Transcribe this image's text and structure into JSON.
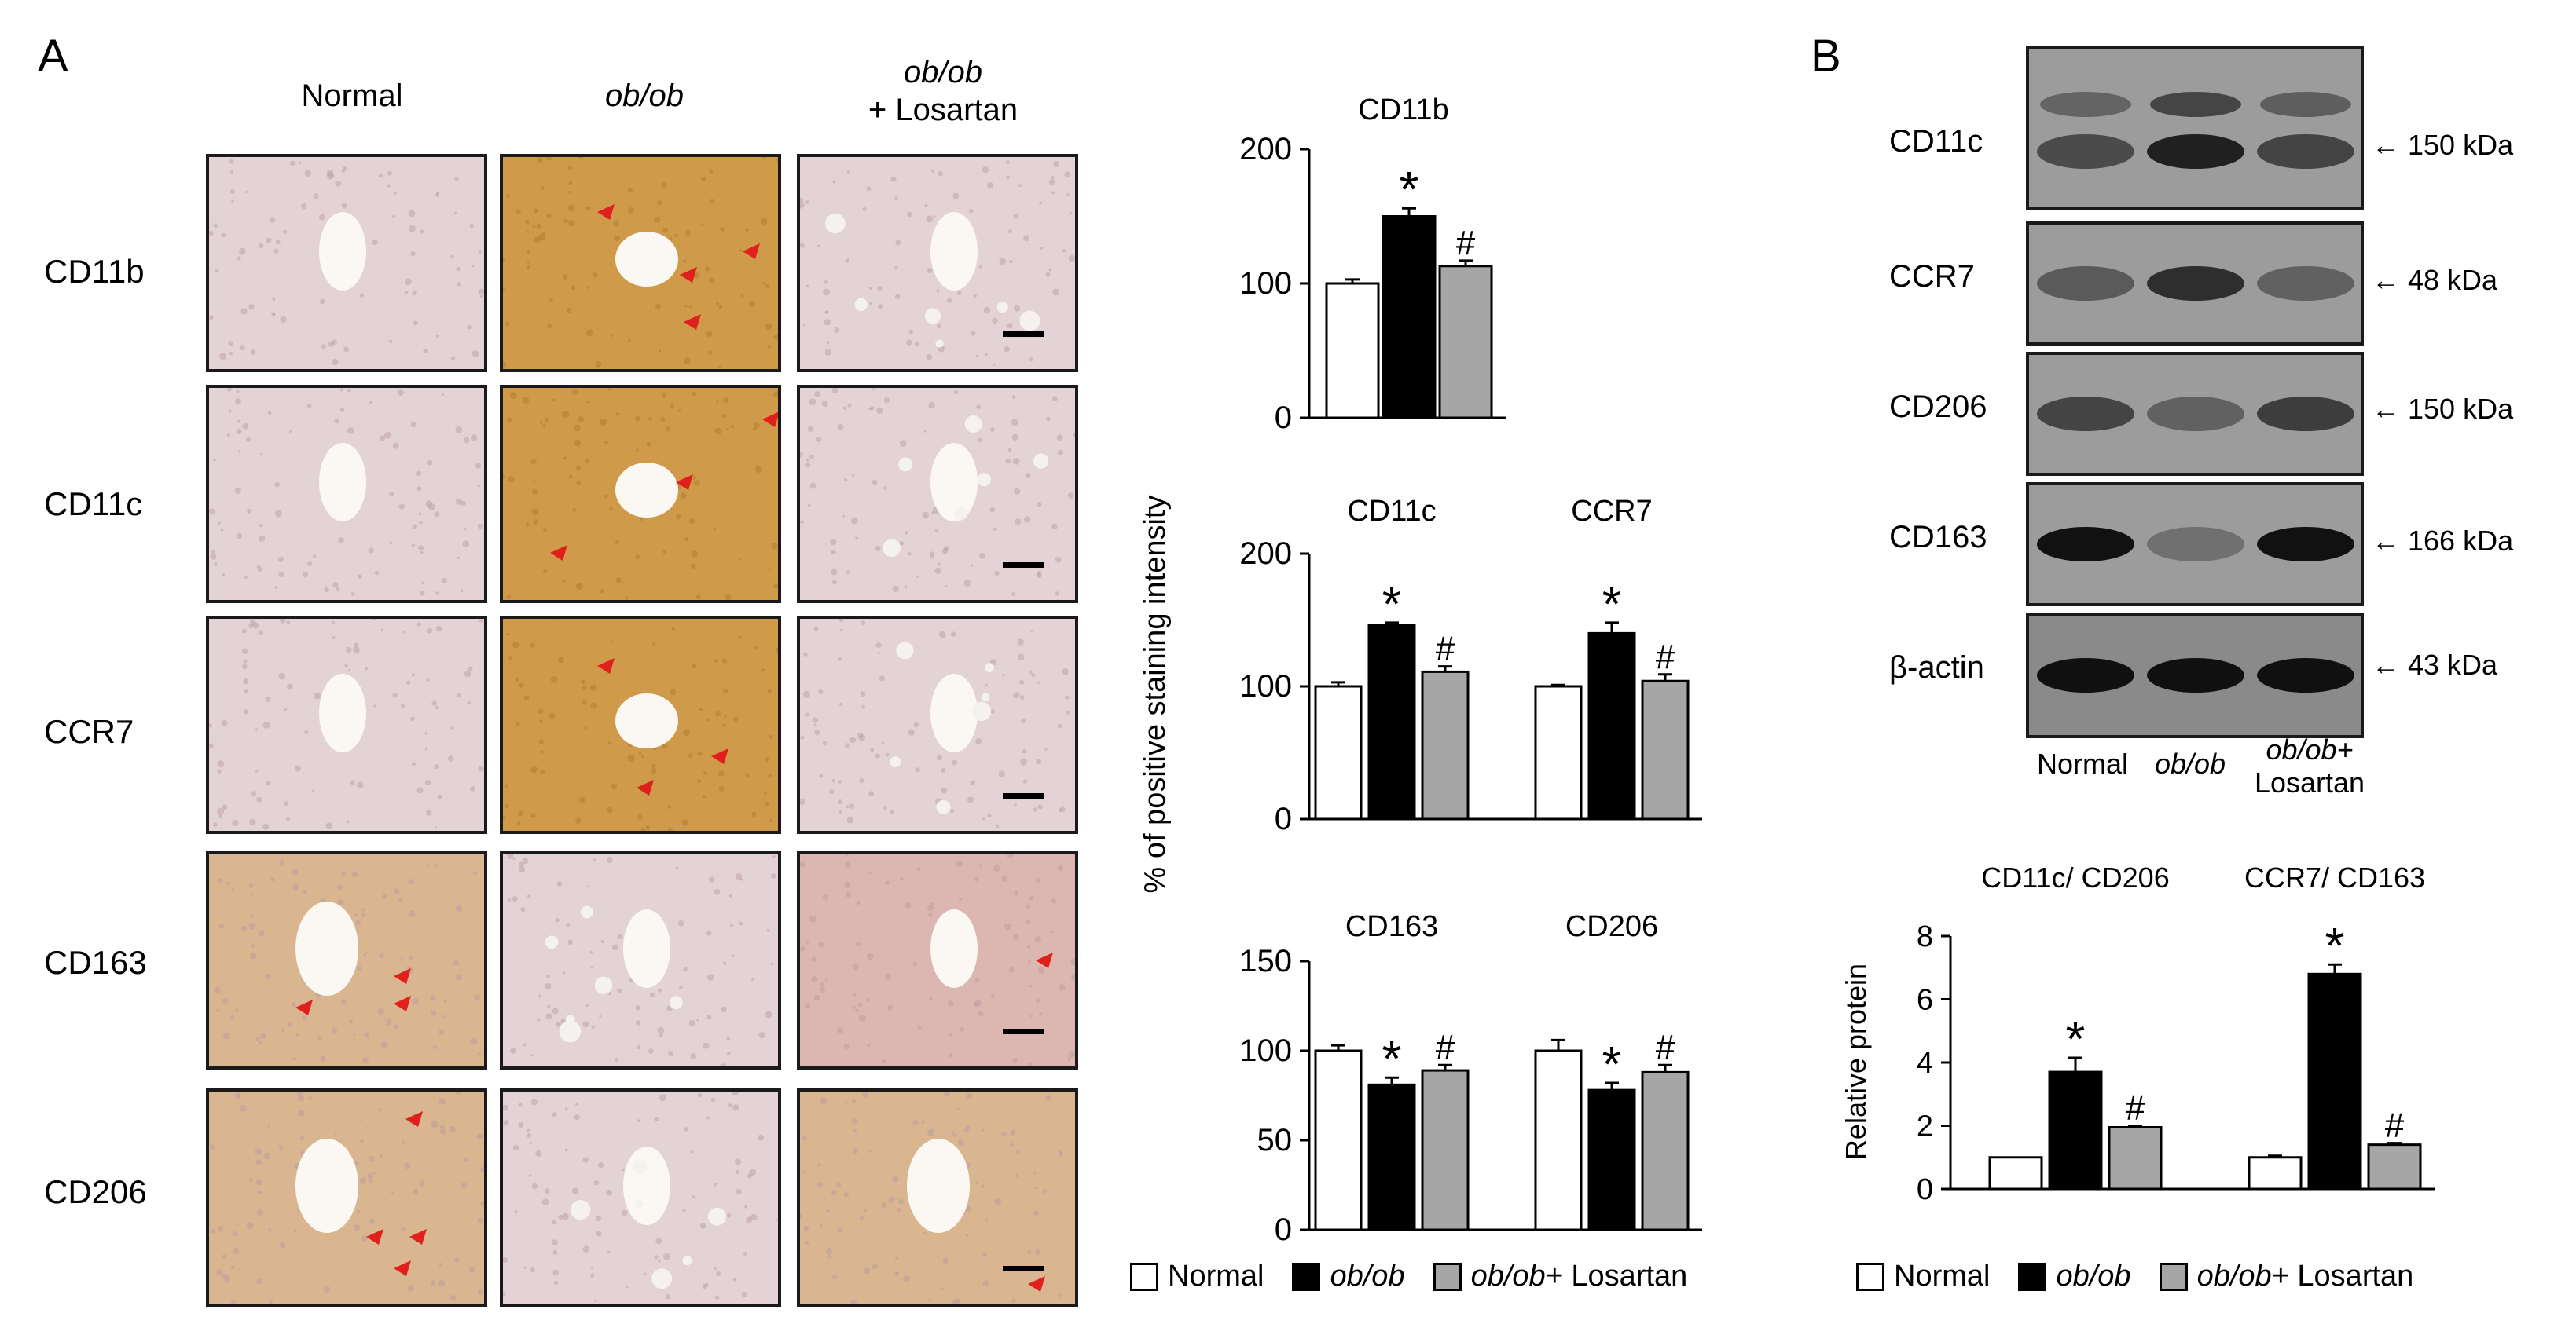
{
  "panel_a": {
    "letter": "A",
    "columns": [
      {
        "text": "Normal",
        "italic_part": "",
        "line2": ""
      },
      {
        "text": "",
        "italic_part": "ob/ob",
        "line2": ""
      },
      {
        "text": "",
        "italic_part": "ob/ob",
        "line2": "+ Losartan"
      }
    ],
    "rows": [
      "CD11b",
      "CD11c",
      "CCR7",
      "CD163",
      "CD206"
    ],
    "tissue_colors": {
      "pale_pink": "#e3d3d6",
      "brown": "#cf9a4a",
      "light_brown": "#d9b590",
      "arrow_red": "#e0201c"
    }
  },
  "panel_b": {
    "letter": "B",
    "blot_labels": [
      "CD11c",
      "CCR7",
      "CD206",
      "CD163",
      "β-actin"
    ],
    "kda": [
      "150 kDa",
      "48 kDa",
      "150 kDa",
      "166 kDa",
      "43 kDa"
    ],
    "lanes": {
      "normal": "Normal",
      "obob": "ob/ob",
      "obob_plus": "ob/ob+",
      "losartan": "Losartan"
    }
  },
  "legend": {
    "normal": "Normal",
    "obob": "ob/ob",
    "obob_plus": "ob/ob+",
    "losartan_suffix": " Losartan"
  },
  "colors": {
    "normal": "#ffffff",
    "obob": "#000000",
    "losartan": "#a6a6a6"
  },
  "chart_data": [
    {
      "type": "bar",
      "title": "CD11b",
      "categories": [
        "CD11b"
      ],
      "series": [
        {
          "name": "Normal",
          "values": [
            100
          ],
          "errors": [
            3
          ]
        },
        {
          "name": "ob/ob",
          "values": [
            150
          ],
          "errors": [
            6
          ]
        },
        {
          "name": "ob/ob+ Losartan",
          "values": [
            113
          ],
          "errors": [
            4
          ]
        }
      ],
      "marks": [
        [
          "",
          "*",
          "#"
        ]
      ],
      "ylabel": "% of positive staining intensity",
      "ylim": [
        0,
        200
      ],
      "yticks": [
        "0",
        "100",
        "200"
      ]
    },
    {
      "type": "bar",
      "categories": [
        "CD11c",
        "CCR7"
      ],
      "series": [
        {
          "name": "Normal",
          "values": [
            100,
            100
          ],
          "errors": [
            3,
            1
          ]
        },
        {
          "name": "ob/ob",
          "values": [
            146,
            140
          ],
          "errors": [
            2,
            8
          ]
        },
        {
          "name": "ob/ob+ Losartan",
          "values": [
            111,
            104
          ],
          "errors": [
            4,
            5
          ]
        }
      ],
      "marks": [
        [
          "",
          "*",
          "#"
        ],
        [
          "",
          "*",
          "#"
        ]
      ],
      "ylim": [
        0,
        200
      ],
      "yticks": [
        "0",
        "100",
        "200"
      ]
    },
    {
      "type": "bar",
      "categories": [
        "CD163",
        "CD206"
      ],
      "series": [
        {
          "name": "Normal",
          "values": [
            100,
            100
          ],
          "errors": [
            3,
            6
          ]
        },
        {
          "name": "ob/ob",
          "values": [
            81,
            78
          ],
          "errors": [
            4,
            4
          ]
        },
        {
          "name": "ob/ob+ Losartan",
          "values": [
            89,
            88
          ],
          "errors": [
            3,
            4
          ]
        }
      ],
      "marks": [
        [
          "",
          "*",
          "#"
        ],
        [
          "",
          "*",
          "#"
        ]
      ],
      "ylim": [
        0,
        150
      ],
      "yticks": [
        "0",
        "50",
        "100",
        "150"
      ]
    },
    {
      "type": "bar",
      "categories": [
        "CD11c/ CD206",
        "CCR7/ CD163"
      ],
      "series": [
        {
          "name": "Normal",
          "values": [
            1,
            1
          ],
          "errors": [
            0,
            0.05
          ]
        },
        {
          "name": "ob/ob",
          "values": [
            3.7,
            6.8
          ],
          "errors": [
            0.45,
            0.3
          ]
        },
        {
          "name": "ob/ob+ Losartan",
          "values": [
            1.95,
            1.4
          ],
          "errors": [
            0.05,
            0.05
          ]
        }
      ],
      "marks": [
        [
          "",
          "*",
          "#"
        ],
        [
          "",
          "*",
          "#"
        ]
      ],
      "ylabel": "Relative protein",
      "ylim": [
        0,
        8
      ],
      "yticks": [
        "0",
        "2",
        "4",
        "6",
        "8"
      ]
    }
  ]
}
